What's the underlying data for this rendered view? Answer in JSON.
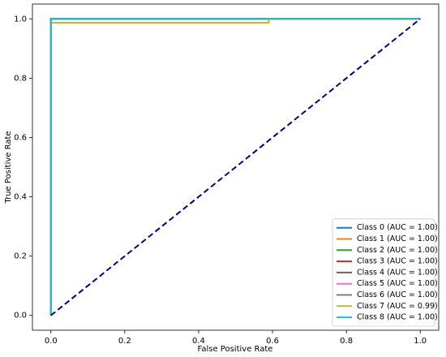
{
  "chart_data": {
    "type": "line",
    "xlabel": "False Positive Rate",
    "ylabel": "True Positive Rate",
    "xlim": [
      -0.05,
      1.05
    ],
    "ylim": [
      -0.05,
      1.05
    ],
    "xticks": [
      {
        "value": 0,
        "label": "0.0"
      },
      0.2,
      0.4,
      0.6,
      0.8,
      {
        "value": 1,
        "label": "1.0"
      }
    ],
    "yticks": [
      {
        "value": 0,
        "label": "0.0"
      },
      0.2,
      0.4,
      0.6,
      0.8,
      {
        "value": 1,
        "label": "1.0"
      }
    ],
    "legend": "lower right",
    "series": [
      {
        "name": "Class 0 (AUC = 1.00)",
        "color": "#1f77b4",
        "x": [
          0,
          0,
          1
        ],
        "values": [
          0,
          1,
          1
        ]
      },
      {
        "name": "Class 1 (AUC = 1.00)",
        "color": "#ff7f0e",
        "x": [
          0,
          0,
          1
        ],
        "values": [
          0,
          1,
          1
        ]
      },
      {
        "name": "Class 2 (AUC = 1.00)",
        "color": "#2ca02c",
        "x": [
          0,
          0,
          1
        ],
        "values": [
          0,
          1,
          1
        ]
      },
      {
        "name": "Class 3 (AUC = 1.00)",
        "color": "#d62728",
        "x": [
          0,
          0,
          1
        ],
        "values": [
          0,
          1,
          1
        ]
      },
      {
        "name": "Class 4 (AUC = 1.00)",
        "color": "#8c564b",
        "x": [
          0,
          0,
          1
        ],
        "values": [
          0,
          1,
          1
        ]
      },
      {
        "name": "Class 5 (AUC = 1.00)",
        "color": "#e377c2",
        "x": [
          0,
          0,
          1
        ],
        "values": [
          0,
          1,
          1
        ]
      },
      {
        "name": "Class 6 (AUC = 1.00)",
        "color": "#7f7f7f",
        "x": [
          0,
          0,
          1
        ],
        "values": [
          0,
          1,
          1
        ]
      },
      {
        "name": "Class 7 (AUC = 0.99)",
        "color": "#bcbd22",
        "x": [
          0,
          0,
          0.59,
          0.59,
          1
        ],
        "values": [
          0,
          0.987,
          0.987,
          1,
          1
        ]
      },
      {
        "name": "Class 8 (AUC = 1.00)",
        "color": "#17becf",
        "x": [
          0,
          0,
          1
        ],
        "values": [
          0,
          1,
          1
        ]
      }
    ],
    "diagonal": {
      "color": "#000080",
      "x": [
        0,
        1
      ],
      "values": [
        0,
        1
      ]
    }
  }
}
